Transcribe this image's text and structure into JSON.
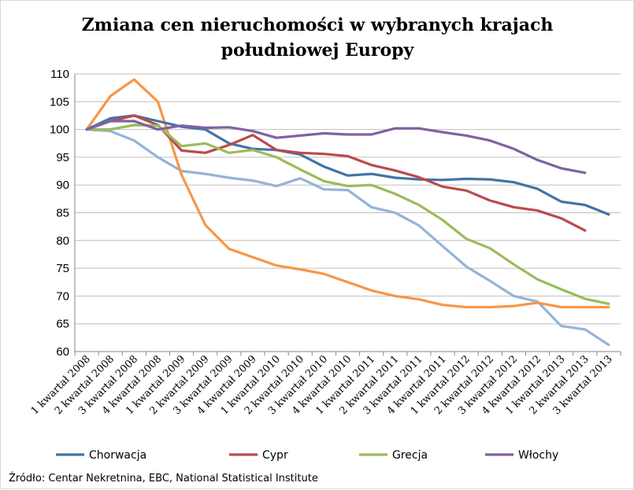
{
  "chart_data": {
    "type": "line",
    "title_line1": "Zmiana cen nieruchomości w wybranych krajach",
    "title_line2": "południowej Europy",
    "categories": [
      "1 kwartał 2008",
      "2 kwartał 2008",
      "3 kwartał 2008",
      "4 kwartał 2008",
      "1 kwartał 2009",
      "2 kwartał 2009",
      "3 kwartał 2009",
      "4 kwartał 2009",
      "1 kwartał 2010",
      "2 kwartał 2010",
      "3 kwartał 2010",
      "4 kwartał 2010",
      "1 kwartał 2011",
      "2 kwartał 2011",
      "3 kwartał 2011",
      "4 kwartał 2011",
      "1 kwartał 2012",
      "2 kwartał 2012",
      "3 kwartał 2012",
      "4 kwartał 2012",
      "1 kwartał 2013",
      "2 kwartał 2013",
      "3 kwartał 2013"
    ],
    "ylim": [
      60,
      110
    ],
    "yticks": [
      "60",
      "65",
      "70",
      "75",
      "80",
      "85",
      "90",
      "95",
      "100",
      "105",
      "110"
    ],
    "grid": true,
    "legend_position": "bottom",
    "series": [
      {
        "name": "Chorwacja",
        "color": "#4174a6",
        "values": [
          100,
          102,
          102.5,
          101.5,
          100.5,
          100,
          97.5,
          96.5,
          96.3,
          95.5,
          93.3,
          91.7,
          92,
          91.3,
          91,
          90.9,
          91.1,
          91,
          90.5,
          89.3,
          87,
          86.4,
          84.7
        ]
      },
      {
        "name": "Cypr",
        "color": "#bb4a4c",
        "values": [
          100,
          101.5,
          102.5,
          100.8,
          96.2,
          95.8,
          97.2,
          99,
          96.3,
          95.8,
          95.6,
          95.2,
          93.6,
          92.6,
          91.4,
          89.7,
          89,
          87.2,
          86,
          85.4,
          84,
          81.8,
          null
        ]
      },
      {
        "name": "Grecja",
        "color": "#9bbb59",
        "values": [
          100,
          100,
          100.8,
          100.7,
          97,
          97.5,
          95.8,
          96.3,
          95,
          92.8,
          90.7,
          89.8,
          90,
          88.4,
          86.4,
          83.7,
          80.3,
          78.6,
          75.7,
          73,
          71.2,
          69.5,
          68.6
        ]
      },
      {
        "name": "Włochy",
        "color": "#7e62a1",
        "values": [
          100,
          101.5,
          101.5,
          100,
          100.7,
          100.3,
          100.4,
          99.7,
          98.5,
          98.9,
          99.3,
          99.1,
          99.1,
          100.2,
          100.2,
          99.5,
          98.9,
          98,
          96.5,
          94.5,
          93,
          92.2,
          null
        ]
      },
      {
        "name": "",
        "color": "#95b3d7",
        "values": [
          100,
          99.7,
          98,
          95,
          92.5,
          92,
          91.3,
          90.8,
          89.8,
          91.2,
          89.2,
          89.1,
          86,
          85,
          82.7,
          79,
          75.3,
          72.7,
          70,
          69,
          64.6,
          64,
          61.2
        ]
      },
      {
        "name": "",
        "color": "#f79646",
        "values": [
          100,
          106,
          109,
          105,
          91.8,
          82.8,
          78.5,
          77,
          75.5,
          74.8,
          74,
          72.5,
          71,
          70,
          69.4,
          68.4,
          68,
          68,
          68.2,
          68.8,
          68,
          68,
          68
        ]
      }
    ],
    "source": "Źródło:  Centar Nekretnina, EBC, National Statistical Institute"
  }
}
